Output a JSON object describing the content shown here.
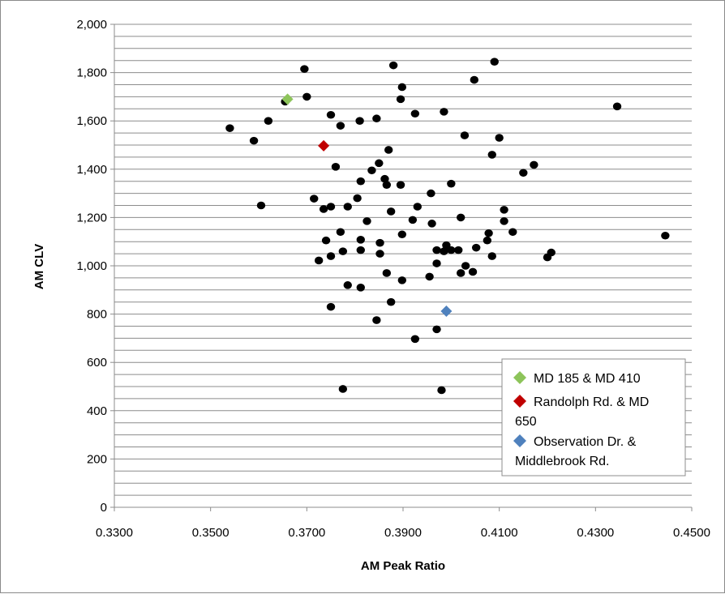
{
  "chart_data": {
    "type": "scatter",
    "title": "",
    "xlabel": "AM Peak Ratio",
    "ylabel": "AM CLV",
    "xlim": [
      0.33,
      0.45
    ],
    "ylim": [
      0,
      2000
    ],
    "x_ticks": [
      "0.3300",
      "0.3500",
      "0.3700",
      "0.3900",
      "0.4100",
      "0.4300",
      "0.4500"
    ],
    "x_tick_values": [
      0.33,
      0.35,
      0.37,
      0.39,
      0.41,
      0.43,
      0.45
    ],
    "y_ticks": [
      "0",
      "200",
      "400",
      "600",
      "800",
      "1,000",
      "1,200",
      "1,400",
      "1,600",
      "1,800",
      "2,000"
    ],
    "y_tick_values": [
      0,
      200,
      400,
      600,
      800,
      1000,
      1200,
      1400,
      1600,
      1800,
      2000
    ],
    "y_minor_step": 50,
    "grid": "horizontal",
    "legend_position": "bottom-right",
    "series": [
      {
        "marker": "circle",
        "color": "#000000",
        "points": [
          [
            0.354,
            1570
          ],
          [
            0.359,
            1518
          ],
          [
            0.3605,
            1250
          ],
          [
            0.362,
            1600
          ],
          [
            0.3655,
            1680
          ],
          [
            0.3695,
            1815
          ],
          [
            0.37,
            1700
          ],
          [
            0.3715,
            1278
          ],
          [
            0.3725,
            1022
          ],
          [
            0.3735,
            1235
          ],
          [
            0.374,
            1105
          ],
          [
            0.375,
            1625
          ],
          [
            0.375,
            1245
          ],
          [
            0.375,
            1040
          ],
          [
            0.375,
            830
          ],
          [
            0.376,
            1410
          ],
          [
            0.377,
            1580
          ],
          [
            0.377,
            1140
          ],
          [
            0.3775,
            1060
          ],
          [
            0.3775,
            490
          ],
          [
            0.3785,
            1245
          ],
          [
            0.3785,
            920
          ],
          [
            0.3805,
            1280
          ],
          [
            0.381,
            1600
          ],
          [
            0.3812,
            1350
          ],
          [
            0.3812,
            1065
          ],
          [
            0.3812,
            1108
          ],
          [
            0.3812,
            910
          ],
          [
            0.3825,
            1185
          ],
          [
            0.3835,
            1395
          ],
          [
            0.3845,
            1610
          ],
          [
            0.385,
            1425
          ],
          [
            0.3845,
            775
          ],
          [
            0.3852,
            1095
          ],
          [
            0.3852,
            1050
          ],
          [
            0.3862,
            1360
          ],
          [
            0.3866,
            1335
          ],
          [
            0.3866,
            970
          ],
          [
            0.387,
            1480
          ],
          [
            0.3875,
            1225
          ],
          [
            0.3875,
            850
          ],
          [
            0.388,
            1830
          ],
          [
            0.3895,
            1690
          ],
          [
            0.3898,
            1740
          ],
          [
            0.3895,
            1335
          ],
          [
            0.3898,
            1130
          ],
          [
            0.3898,
            940
          ],
          [
            0.392,
            1190
          ],
          [
            0.3925,
            1630
          ],
          [
            0.3925,
            697
          ],
          [
            0.393,
            1245
          ],
          [
            0.3955,
            955
          ],
          [
            0.3958,
            1300
          ],
          [
            0.396,
            1175
          ],
          [
            0.397,
            1065
          ],
          [
            0.397,
            1010
          ],
          [
            0.397,
            737
          ],
          [
            0.3985,
            1638
          ],
          [
            0.3985,
            1060
          ],
          [
            0.398,
            485
          ],
          [
            0.399,
            1085
          ],
          [
            0.4,
            1340
          ],
          [
            0.4,
            1065
          ],
          [
            0.4015,
            1065
          ],
          [
            0.402,
            1200
          ],
          [
            0.402,
            970
          ],
          [
            0.4028,
            1540
          ],
          [
            0.403,
            1000
          ],
          [
            0.4045,
            975
          ],
          [
            0.4048,
            1770
          ],
          [
            0.4052,
            1075
          ],
          [
            0.4075,
            1105
          ],
          [
            0.4078,
            1135
          ],
          [
            0.4085,
            1460
          ],
          [
            0.4085,
            1040
          ],
          [
            0.409,
            1845
          ],
          [
            0.41,
            1530
          ],
          [
            0.411,
            1232
          ],
          [
            0.411,
            1185
          ],
          [
            0.4128,
            1140
          ],
          [
            0.415,
            1385
          ],
          [
            0.4172,
            1418
          ],
          [
            0.42,
            1035
          ],
          [
            0.4208,
            1055
          ],
          [
            0.4345,
            1660
          ],
          [
            0.4445,
            1125
          ]
        ]
      },
      {
        "name": "MD 185 & MD 410",
        "marker": "diamond",
        "color": "#8dc45a",
        "points": [
          [
            0.366,
            1690
          ]
        ]
      },
      {
        "name": "Randolph Rd.  & MD 650",
        "marker": "diamond",
        "color": "#c00000",
        "points": [
          [
            0.3735,
            1497
          ]
        ]
      },
      {
        "name": "Observation Dr. & Middlebrook Rd.",
        "marker": "diamond",
        "color": "#4f81bd",
        "points": [
          [
            0.399,
            812
          ]
        ]
      }
    ],
    "legend": {
      "entries": [
        {
          "lines": [
            "MD 185 & MD 410"
          ],
          "color": "#8dc45a"
        },
        {
          "lines": [
            "Randolph Rd.  & MD",
            "650"
          ],
          "color": "#c00000"
        },
        {
          "lines": [
            "Observation Dr. &",
            "Middlebrook Rd."
          ],
          "color": "#4f81bd"
        }
      ]
    }
  }
}
